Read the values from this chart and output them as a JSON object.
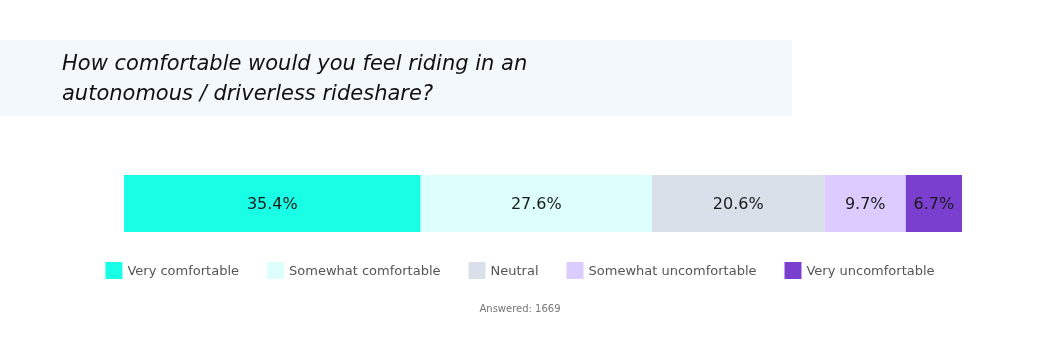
{
  "chart_data": {
    "type": "bar",
    "title": "How comfortable would you feel riding in an autonomous / driverless rideshare?",
    "orientation": "horizontal",
    "stacked": true,
    "categories": [
      null
    ],
    "series": [
      {
        "name": "Very comfortable",
        "color": "#19ffe6",
        "values": [
          35.4
        ],
        "value_labels": [
          "35.4%"
        ]
      },
      {
        "name": "Somewhat comfortable",
        "color": "#ddfffb",
        "values": [
          27.6
        ],
        "value_labels": [
          "27.6%"
        ]
      },
      {
        "name": "Neutral",
        "color": "#d9e0ea",
        "values": [
          20.6
        ],
        "value_labels": [
          "20.6%"
        ]
      },
      {
        "name": "Somewhat uncomfortable",
        "color": "#dccbff",
        "values": [
          9.7
        ],
        "value_labels": [
          "9.7%"
        ]
      },
      {
        "name": "Very uncomfortable",
        "color": "#7b3fd0",
        "values": [
          6.7
        ],
        "value_labels": [
          "6.7%"
        ]
      }
    ],
    "legend": "bottom",
    "annotations": [
      "Answered: 1669"
    ]
  }
}
